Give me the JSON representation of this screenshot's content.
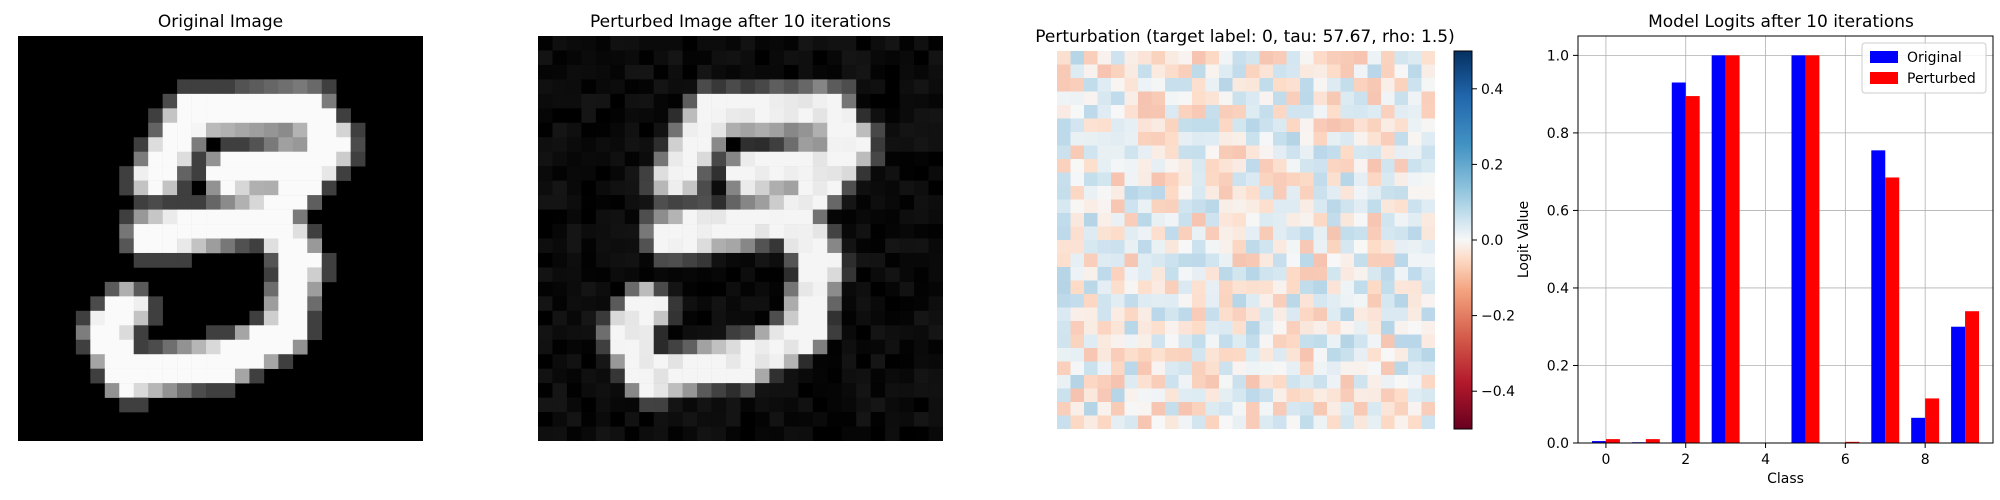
{
  "panels": {
    "original_title": "Original Image",
    "perturbed_title": "Perturbed Image after 10 iterations",
    "perturbation_title": "Perturbation (target label: 0, tau: 57.67, rho: 1.5)",
    "logits_title": "Model Logits after 10 iterations"
  },
  "colorbar": {
    "ticks": [
      0.4,
      0.2,
      0.0,
      -0.2,
      -0.4
    ],
    "tick_labels": [
      "0.4",
      "0.2",
      "0.0",
      "−0.2",
      "−0.4"
    ],
    "range": [
      -0.5,
      0.5
    ],
    "colormap": "RdBu"
  },
  "chart_data": {
    "type": "bar",
    "title": "Model Logits after 10 iterations",
    "xlabel": "Class",
    "ylabel": "Logit Value",
    "categories": [
      0,
      1,
      2,
      3,
      4,
      5,
      6,
      7,
      8,
      9
    ],
    "x_ticks": [
      0,
      2,
      4,
      6,
      8
    ],
    "y_ticks": [
      0.0,
      0.2,
      0.4,
      0.6,
      0.8,
      1.0
    ],
    "y_tick_labels": [
      "0.0",
      "0.2",
      "0.4",
      "0.6",
      "0.8",
      "1.0"
    ],
    "ylim": [
      0,
      1.05
    ],
    "xlim": [
      -0.7,
      9.7
    ],
    "grid": true,
    "legend": "top-right",
    "series": [
      {
        "name": "Original",
        "color": "#0000ff",
        "values": [
          0.005,
          0.002,
          0.93,
          1.0,
          0.0,
          1.0,
          0.0,
          0.755,
          0.065,
          0.3
        ]
      },
      {
        "name": "Perturbed",
        "color": "#ff0000",
        "values": [
          0.01,
          0.01,
          0.895,
          1.0,
          0.0,
          1.0,
          0.003,
          0.685,
          0.115,
          0.34
        ]
      }
    ]
  }
}
